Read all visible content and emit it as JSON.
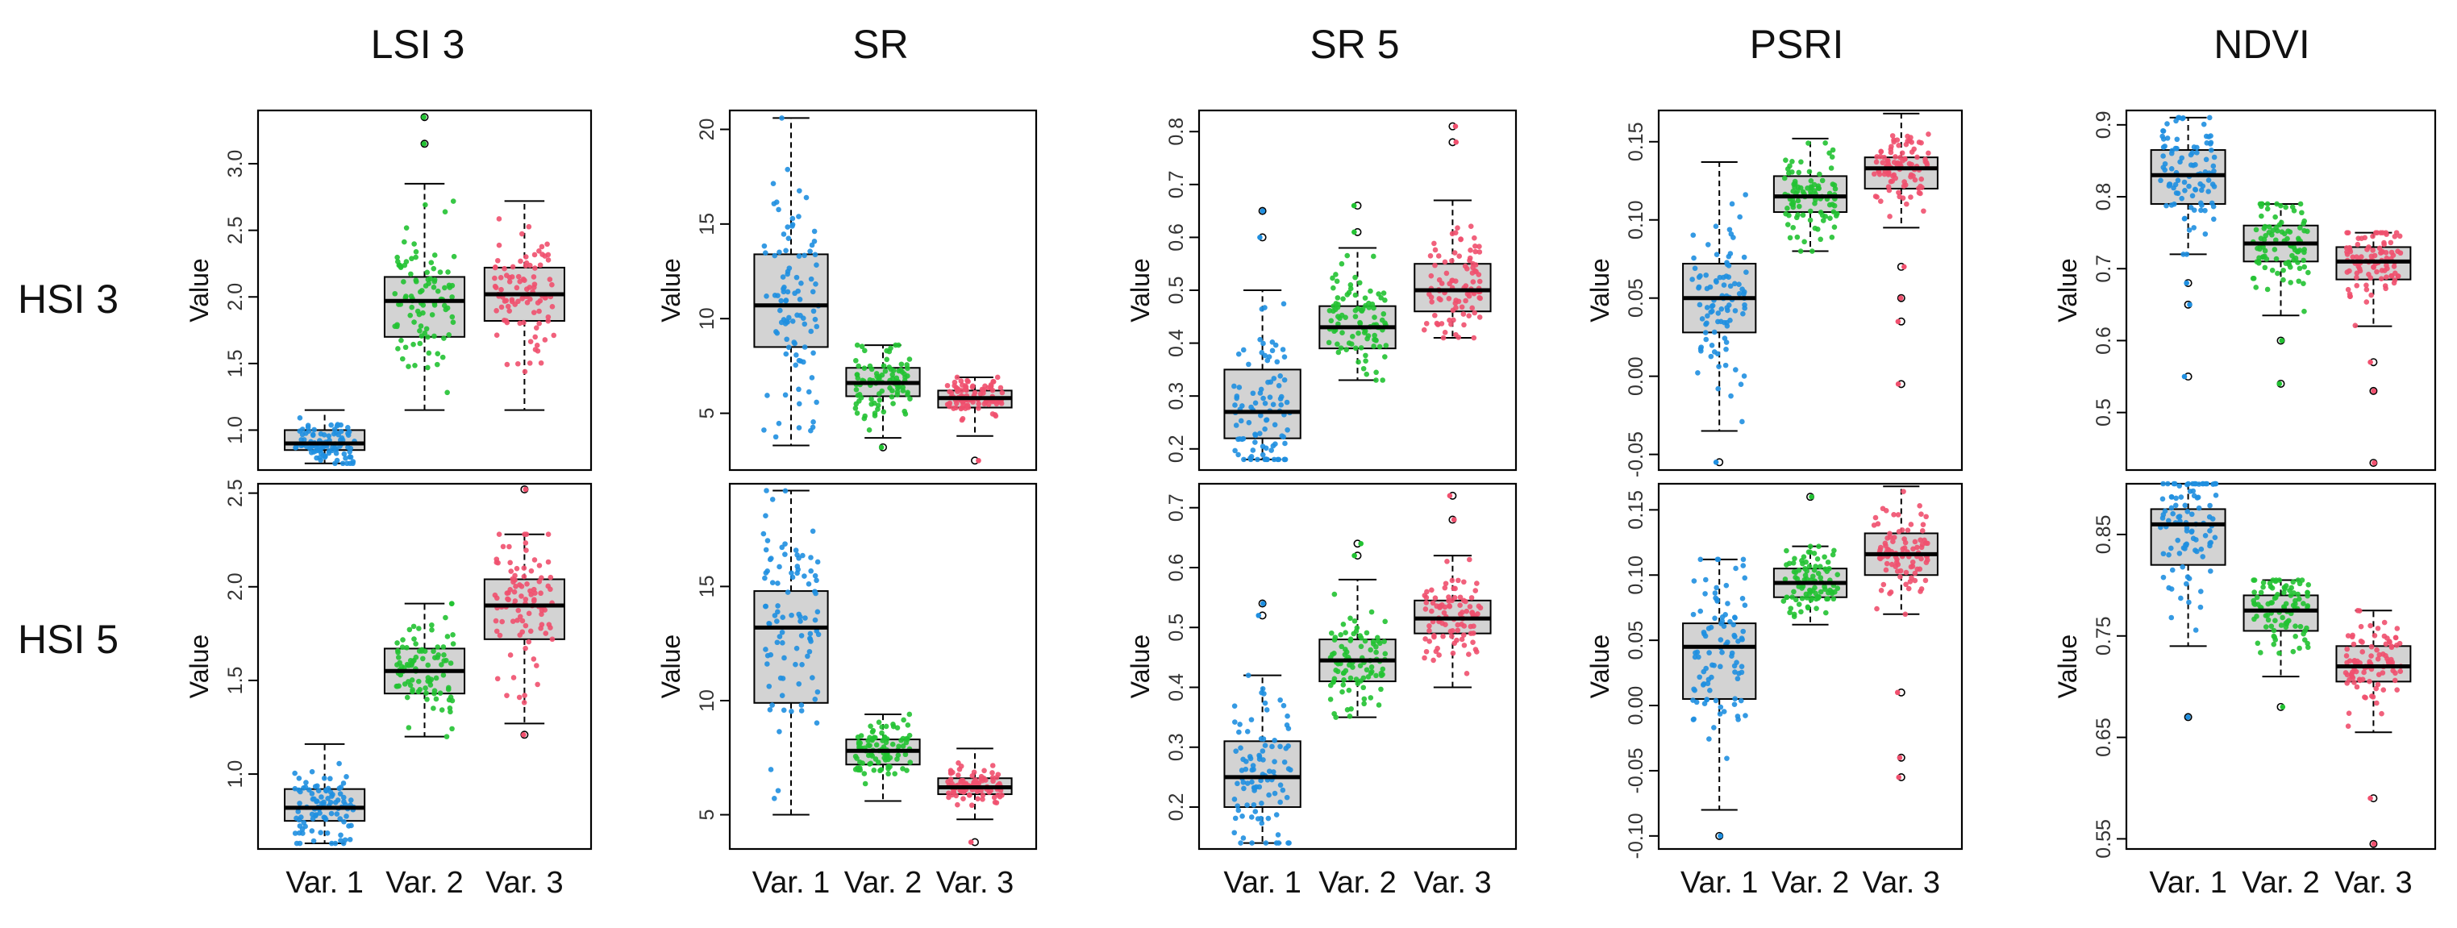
{
  "figure": {
    "column_titles": [
      "LSI 3",
      "SR",
      "SR 5",
      "PSRI",
      "NDVI"
    ],
    "row_titles": [
      "HSI 3",
      "HSI 5"
    ],
    "colors": {
      "Var. 1": "#1f8fe0",
      "Var. 2": "#22c232",
      "Var. 3": "#f0506e",
      "box_fill": "#d3d3d3",
      "outline": "#000000"
    }
  },
  "chart_data": [
    {
      "type": "box",
      "index": "HSI 3 / LSI 3",
      "title": "LSI 3",
      "ylabel": "Value",
      "categories": [
        "Var. 1",
        "Var. 2",
        "Var. 3"
      ],
      "ylim": [
        0.7,
        3.4
      ],
      "yticks": [
        1.0,
        1.5,
        2.0,
        2.5,
        3.0
      ],
      "ytick_labels": [
        "1.0",
        "1.5",
        "2.0",
        "2.5",
        "3.0"
      ],
      "boxes": [
        {
          "category": "Var. 1",
          "min": 0.75,
          "q1": 0.85,
          "median": 0.9,
          "q3": 1.0,
          "max": 1.15,
          "outliers": []
        },
        {
          "category": "Var. 2",
          "min": 1.15,
          "q1": 1.7,
          "median": 1.97,
          "q3": 2.15,
          "max": 2.85,
          "outliers": [
            3.15,
            3.35
          ]
        },
        {
          "category": "Var. 3",
          "min": 1.15,
          "q1": 1.82,
          "median": 2.02,
          "q3": 2.22,
          "max": 2.72,
          "outliers": []
        }
      ]
    },
    {
      "type": "box",
      "index": "HSI 3 / SR",
      "title": "SR",
      "ylabel": "Value",
      "categories": [
        "Var. 1",
        "Var. 2",
        "Var. 3"
      ],
      "ylim": [
        2.0,
        21.0
      ],
      "yticks": [
        5,
        10,
        15,
        20
      ],
      "ytick_labels": [
        "5",
        "10",
        "15",
        "20"
      ],
      "boxes": [
        {
          "category": "Var. 1",
          "min": 3.3,
          "q1": 8.5,
          "median": 10.7,
          "q3": 13.4,
          "max": 20.6,
          "outliers": []
        },
        {
          "category": "Var. 2",
          "min": 3.7,
          "q1": 5.9,
          "median": 6.6,
          "q3": 7.4,
          "max": 8.6,
          "outliers": [
            3.2
          ]
        },
        {
          "category": "Var. 3",
          "min": 3.8,
          "q1": 5.3,
          "median": 5.8,
          "q3": 6.2,
          "max": 6.9,
          "outliers": [
            2.5
          ]
        }
      ]
    },
    {
      "type": "box",
      "index": "HSI 3 / SR 5",
      "title": "SR 5",
      "ylabel": "Value",
      "categories": [
        "Var. 1",
        "Var. 2",
        "Var. 3"
      ],
      "ylim": [
        0.16,
        0.84
      ],
      "yticks": [
        0.2,
        0.3,
        0.4,
        0.5,
        0.6,
        0.7,
        0.8
      ],
      "ytick_labels": [
        "0.2",
        "0.3",
        "0.4",
        "0.5",
        "0.6",
        "0.7",
        "0.8"
      ],
      "boxes": [
        {
          "category": "Var. 1",
          "min": 0.18,
          "q1": 0.22,
          "median": 0.27,
          "q3": 0.35,
          "max": 0.5,
          "outliers": [
            0.6,
            0.65
          ]
        },
        {
          "category": "Var. 2",
          "min": 0.33,
          "q1": 0.39,
          "median": 0.43,
          "q3": 0.47,
          "max": 0.58,
          "outliers": [
            0.61,
            0.66
          ]
        },
        {
          "category": "Var. 3",
          "min": 0.41,
          "q1": 0.46,
          "median": 0.5,
          "q3": 0.55,
          "max": 0.67,
          "outliers": [
            0.78,
            0.81
          ]
        }
      ]
    },
    {
      "type": "box",
      "index": "HSI 3 / PSRI",
      "title": "PSRI",
      "ylabel": "Value",
      "categories": [
        "Var. 1",
        "Var. 2",
        "Var. 3"
      ],
      "ylim": [
        -0.06,
        0.17
      ],
      "yticks": [
        -0.05,
        0.0,
        0.05,
        0.1,
        0.15
      ],
      "ytick_labels": [
        "-0.05",
        "0.00",
        "0.05",
        "0.10",
        "0.15"
      ],
      "boxes": [
        {
          "category": "Var. 1",
          "min": -0.035,
          "q1": 0.028,
          "median": 0.05,
          "q3": 0.072,
          "max": 0.137,
          "outliers": [
            -0.055
          ]
        },
        {
          "category": "Var. 2",
          "min": 0.08,
          "q1": 0.105,
          "median": 0.115,
          "q3": 0.128,
          "max": 0.152,
          "outliers": []
        },
        {
          "category": "Var. 3",
          "min": 0.095,
          "q1": 0.12,
          "median": 0.133,
          "q3": 0.14,
          "max": 0.168,
          "outliers": [
            0.07,
            0.05,
            0.035,
            -0.005
          ]
        }
      ]
    },
    {
      "type": "box",
      "index": "HSI 3 / NDVI",
      "title": "NDVI",
      "ylabel": "Value",
      "categories": [
        "Var. 1",
        "Var. 2",
        "Var. 3"
      ],
      "ylim": [
        0.42,
        0.92
      ],
      "yticks": [
        0.5,
        0.6,
        0.7,
        0.8,
        0.9
      ],
      "ytick_labels": [
        "0.5",
        "0.6",
        "0.7",
        "0.8",
        "0.9"
      ],
      "boxes": [
        {
          "category": "Var. 1",
          "min": 0.72,
          "q1": 0.79,
          "median": 0.83,
          "q3": 0.865,
          "max": 0.91,
          "outliers": [
            0.68,
            0.65,
            0.55
          ]
        },
        {
          "category": "Var. 2",
          "min": 0.635,
          "q1": 0.71,
          "median": 0.735,
          "q3": 0.76,
          "max": 0.79,
          "outliers": [
            0.6,
            0.54
          ]
        },
        {
          "category": "Var. 3",
          "min": 0.62,
          "q1": 0.685,
          "median": 0.71,
          "q3": 0.73,
          "max": 0.75,
          "outliers": [
            0.57,
            0.53,
            0.43
          ]
        }
      ]
    },
    {
      "type": "box",
      "index": "HSI 5 / LSI 3",
      "title": "LSI 3",
      "ylabel": "Value",
      "categories": [
        "Var. 1",
        "Var. 2",
        "Var. 3"
      ],
      "ylim": [
        0.6,
        2.55
      ],
      "yticks": [
        1.0,
        1.5,
        2.0,
        2.5
      ],
      "ytick_labels": [
        "1.0",
        "1.5",
        "2.0",
        "2.5"
      ],
      "boxes": [
        {
          "category": "Var. 1",
          "min": 0.63,
          "q1": 0.75,
          "median": 0.82,
          "q3": 0.92,
          "max": 1.16,
          "outliers": []
        },
        {
          "category": "Var. 2",
          "min": 1.2,
          "q1": 1.43,
          "median": 1.55,
          "q3": 1.67,
          "max": 1.91,
          "outliers": []
        },
        {
          "category": "Var. 3",
          "min": 1.27,
          "q1": 1.72,
          "median": 1.9,
          "q3": 2.04,
          "max": 2.28,
          "outliers": [
            1.21,
            2.52
          ]
        }
      ]
    },
    {
      "type": "box",
      "index": "HSI 5 / SR",
      "title": "SR",
      "ylabel": "Value",
      "categories": [
        "Var. 1",
        "Var. 2",
        "Var. 3"
      ],
      "ylim": [
        3.5,
        19.5
      ],
      "yticks": [
        5,
        10,
        15
      ],
      "ytick_labels": [
        "5",
        "10",
        "15"
      ],
      "boxes": [
        {
          "category": "Var. 1",
          "min": 5.0,
          "q1": 9.9,
          "median": 13.2,
          "q3": 14.8,
          "max": 19.2,
          "outliers": []
        },
        {
          "category": "Var. 2",
          "min": 5.6,
          "q1": 7.2,
          "median": 7.8,
          "q3": 8.3,
          "max": 9.4,
          "outliers": []
        },
        {
          "category": "Var. 3",
          "min": 4.8,
          "q1": 5.9,
          "median": 6.2,
          "q3": 6.6,
          "max": 7.9,
          "outliers": [
            3.8
          ]
        }
      ]
    },
    {
      "type": "box",
      "index": "HSI 5 / SR 5",
      "title": "SR 5",
      "ylabel": "Value",
      "categories": [
        "Var. 1",
        "Var. 2",
        "Var. 3"
      ],
      "ylim": [
        0.13,
        0.74
      ],
      "yticks": [
        0.2,
        0.3,
        0.4,
        0.5,
        0.6,
        0.7
      ],
      "ytick_labels": [
        "0.2",
        "0.3",
        "0.4",
        "0.5",
        "0.6",
        "0.7"
      ],
      "boxes": [
        {
          "category": "Var. 1",
          "min": 0.14,
          "q1": 0.2,
          "median": 0.25,
          "q3": 0.31,
          "max": 0.42,
          "outliers": [
            0.52,
            0.54
          ]
        },
        {
          "category": "Var. 2",
          "min": 0.35,
          "q1": 0.41,
          "median": 0.445,
          "q3": 0.48,
          "max": 0.58,
          "outliers": [
            0.62,
            0.64
          ]
        },
        {
          "category": "Var. 3",
          "min": 0.4,
          "q1": 0.49,
          "median": 0.515,
          "q3": 0.545,
          "max": 0.62,
          "outliers": [
            0.68,
            0.72
          ]
        }
      ]
    },
    {
      "type": "box",
      "index": "HSI 5 / PSRI",
      "title": "PSRI",
      "ylabel": "Value",
      "categories": [
        "Var. 1",
        "Var. 2",
        "Var. 3"
      ],
      "ylim": [
        -0.11,
        0.17
      ],
      "yticks": [
        -0.1,
        -0.05,
        0.0,
        0.05,
        0.1,
        0.15
      ],
      "ytick_labels": [
        "-0.10",
        "-0.05",
        "0.00",
        "0.05",
        "0.10",
        "0.15"
      ],
      "boxes": [
        {
          "category": "Var. 1",
          "min": -0.08,
          "q1": 0.005,
          "median": 0.045,
          "q3": 0.063,
          "max": 0.112,
          "outliers": [
            -0.1
          ]
        },
        {
          "category": "Var. 2",
          "min": 0.062,
          "q1": 0.083,
          "median": 0.094,
          "q3": 0.105,
          "max": 0.122,
          "outliers": [
            0.16
          ]
        },
        {
          "category": "Var. 3",
          "min": 0.07,
          "q1": 0.1,
          "median": 0.116,
          "q3": 0.132,
          "max": 0.168,
          "outliers": [
            0.01,
            -0.04,
            -0.055
          ]
        }
      ]
    },
    {
      "type": "box",
      "index": "HSI 5 / NDVI",
      "title": "NDVI",
      "ylabel": "Value",
      "categories": [
        "Var. 1",
        "Var. 2",
        "Var. 3"
      ],
      "ylim": [
        0.54,
        0.9
      ],
      "yticks": [
        0.55,
        0.65,
        0.75,
        0.85
      ],
      "ytick_labels": [
        "0.55",
        "0.65",
        "0.75",
        "0.85"
      ],
      "boxes": [
        {
          "category": "Var. 1",
          "min": 0.74,
          "q1": 0.82,
          "median": 0.86,
          "q3": 0.875,
          "max": 0.9,
          "outliers": [
            0.67
          ]
        },
        {
          "category": "Var. 2",
          "min": 0.71,
          "q1": 0.755,
          "median": 0.775,
          "q3": 0.79,
          "max": 0.805,
          "outliers": [
            0.68
          ]
        },
        {
          "category": "Var. 3",
          "min": 0.655,
          "q1": 0.705,
          "median": 0.72,
          "q3": 0.74,
          "max": 0.775,
          "outliers": [
            0.59,
            0.545
          ]
        }
      ]
    }
  ]
}
